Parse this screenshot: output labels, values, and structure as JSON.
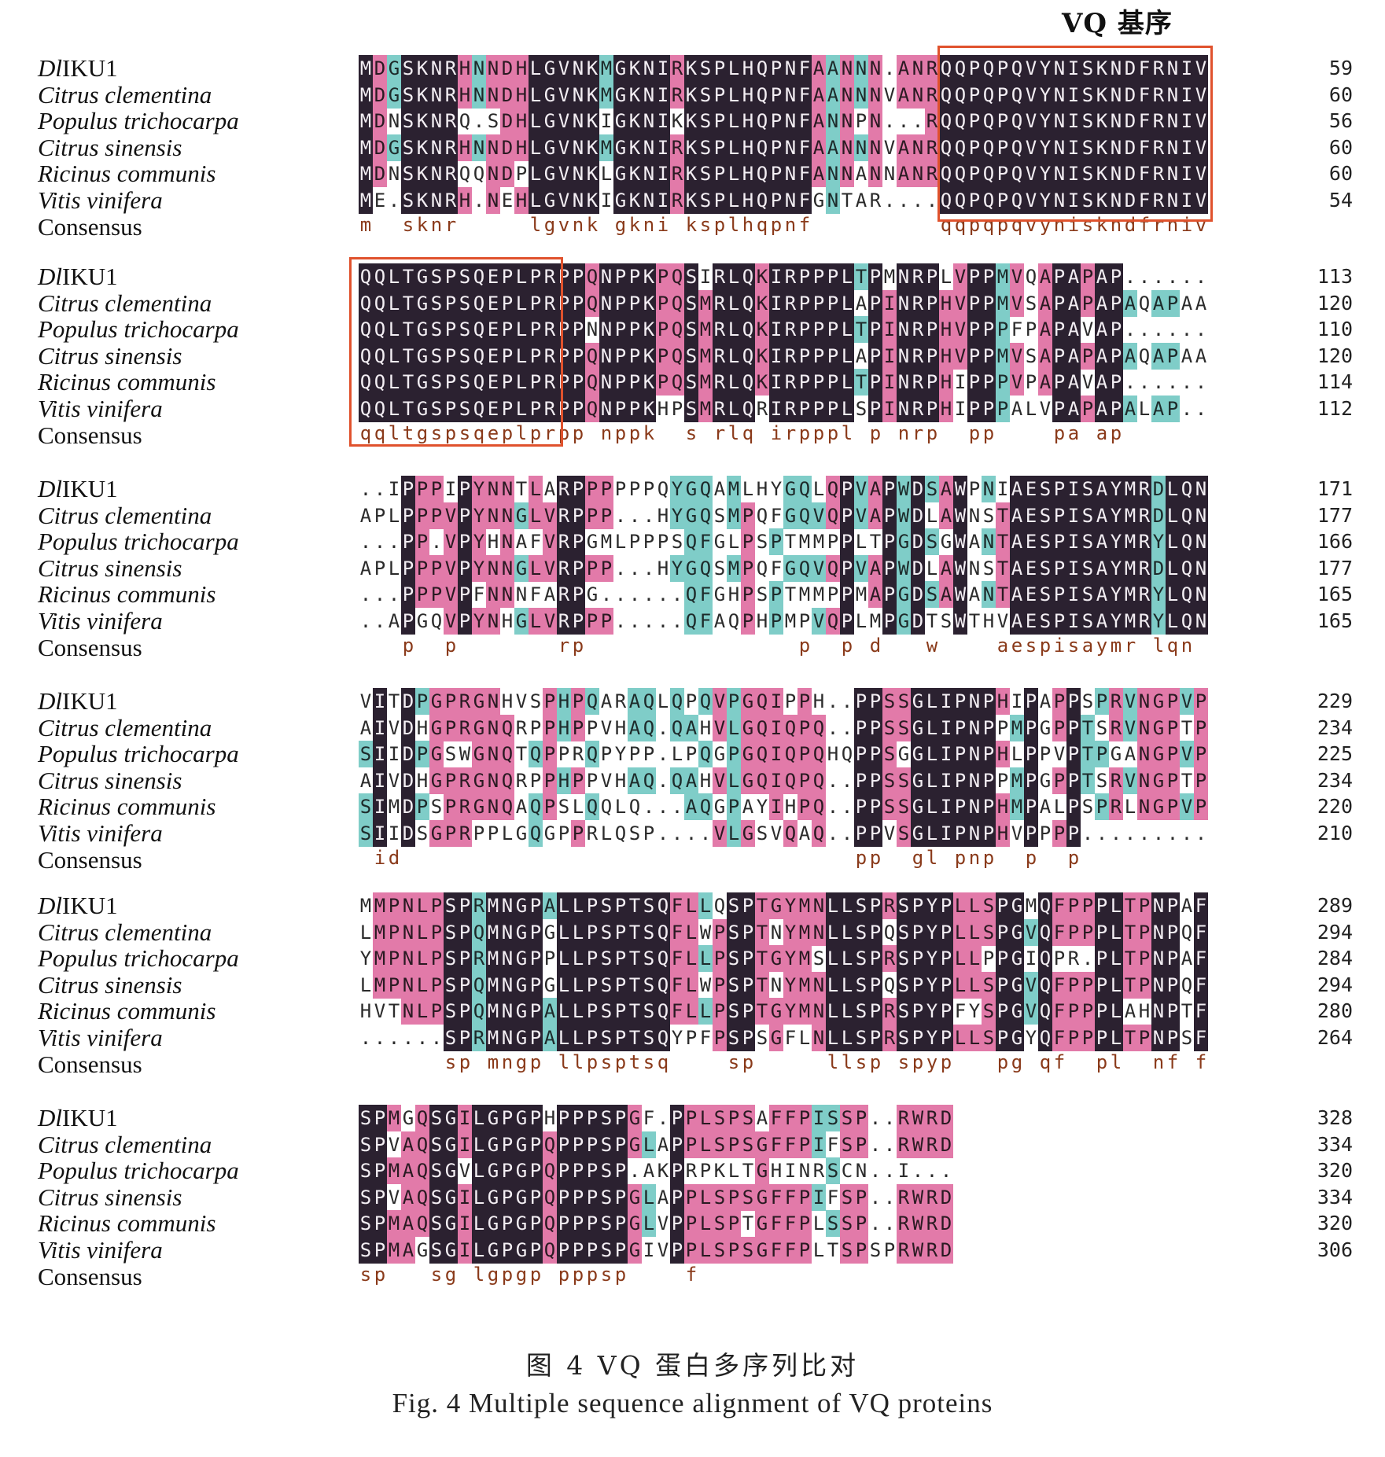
{
  "figure": {
    "motif_label": "VQ 基序",
    "caption_cn": "图 4    VQ 蛋白多序列比对",
    "caption_en": "Fig. 4   Multiple sequence alignment of VQ proteins"
  },
  "species": [
    {
      "name": "DlIKU1",
      "italic_prefix": "Dl",
      "suffix": "IKU1"
    },
    {
      "name": "Citrus clementina"
    },
    {
      "name": "Populus trichocarpa"
    },
    {
      "name": "Citrus sinensis"
    },
    {
      "name": "Ricinus communis"
    },
    {
      "name": "Vitis vinifera"
    }
  ],
  "consensus_label": "Consensus",
  "colors": {
    "full_conservation": "#2b2130",
    "high_conservation": "#e27aa9",
    "partial_conservation": "#7fcdc8",
    "motif_box": "#e0522d"
  },
  "blocks": [
    {
      "seqs": [
        "MDGSKNRHNNDHLGVNKMGKNIRKSPLHQPNFAANNN.ANRQQPQPQVYNISKNDFRNIV",
        "MDGSKNRHNNDHLGVNKMGKNIRKSPLHQPNFAANNNVANRQQPQPQVYNISKNDFRNIV",
        "MDNSKNRQ.SDHLGVNKIGKNIKKSPLHQPNFANNPN...RQQPQPQVYNISKNDFRNIV",
        "MDGSKNRHNNDHLGVNKMGKNIRKSPLHQPNFAANNNVANRQQPQPQVYNISKNDFRNIV",
        "MDNSKNRQQNDPLGVNKLGKNIRKSPLHQPNFANNANNANRQQPQPQVYNISKNDFRNIV",
        "ME.SKNRH.NEHLGVNKIGKNIRKSPLHQPNFGNTAR....QQPQPQVYNISKNDFRNIV"
      ],
      "consensus": "m  sknr     lgvnk gkni ksplhqpnf         qqpqpqvyniskndfrniv",
      "numbers": [
        "59",
        "60",
        "56",
        "60",
        "60",
        "54"
      ]
    },
    {
      "seqs": [
        "QQLTGSPSQEPLPRPPQNPPKPQSIRLQKIRPPPLTPMNRPLVPPMVQAPAPAP......",
        "QQLTGSPSQEPLPRPPQNPPKPQSMRLQKIRPPPLAPINRPHVPPMVSAPAPAPAQAPAA",
        "QQLTGSPSQEPLPRPPNNPPKPQSMRLQKIRPPPLTPINRPHVPPPFPAPAVAP......",
        "QQLTGSPSQEPLPRPPQNPPKPQSMRLQKIRPPPLAPINRPHVPPMVSAPAPAPAQAPAA",
        "QQLTGSPSQEPLPRPPQNPPKPQSMRLQKIRPPPLTPINRPHIPPPVPAPAVAP......",
        "QQLTGSPSQEPLPRPPQNPPKHPSMRLQRIRPPPLSPINRPHIPPPALVPAPAPALAP.."
      ],
      "consensus": "qqltgspsqeplprpp nppk  s rlq irpppl p nrp  pp    pa ap      ",
      "numbers": [
        "113",
        "120",
        "110",
        "120",
        "114",
        "112"
      ]
    },
    {
      "seqs": [
        "..IPPPIPYNNTLARPPPPPPQYGQAMLHYGQLQPVAPWDSAWPNIAESPISAYMRDLQN",
        "APLPPPVPYNNGLVRPPP...HYGQSMPQFGQVQPVAPWDLAWNSTAESPISAYMRDLQN",
        "...PP.VPYHNAFVRPGMLPPPSQFGLPSPTMMPPLTPGDSGWANTAESPISAYMRYLQN",
        "APLPPPVPYNNGLVRPPP...HYGQSMPQFGQVQPVAPWDLAWNSTAESPISAYMRDLQN",
        "...PPPVPFNNNFARPG......QFGHPSPTMMPPMAPGDSAWANTAESPISAYMRYLQN",
        "..APGQVPYNHGLVRPPP.....QFAQPHPMPVQPLMPGDTSWTHVAESPISAYMRYLQN"
      ],
      "consensus": "   p  p       rp               p  p d   w    aespisaymr lqn",
      "numbers": [
        "171",
        "177",
        "166",
        "177",
        "165",
        "165"
      ]
    },
    {
      "seqs": [
        "VITDPGPRGNHVSPHPQARAQLQPQVPGQIPPH..PPSSGLIPNPHIPAPPSPRVNGPVP",
        "AIVDHGPRGNQRPPHPPVHAQ.QAHVLGQIQPQ..PPSSGLIPNPPMPGPPTSRVNGPTP",
        "SIIDPGSWGNQTQPPRQPYPP.LPQGPGQIQPQHQPPSGGLIPNPHLPPVPTPGANGPVP",
        "AIVDHGPRGNQRPPHPPVHAQ.QAHVLGQIQPQ..PPSSGLIPNPPMPGPPTSRVNGPTP",
        "SIMDPSPRGNQAQPSLQQLQ...AQGPAYIHPQ..PPSSGLIPNPHMPALPSPRLNGPVP",
        "SIIDSGPRPPLGQGPPRLQSP....VLGSVQAQ..PPVSGLIPNPHVPPPP........."
      ],
      "consensus": " id                                pp  gl pnp  p  p         ",
      "numbers": [
        "229",
        "234",
        "225",
        "234",
        "220",
        "210"
      ]
    },
    {
      "seqs": [
        "MMPNLPSPRMNGPALLPSPTSQFLLQSPTGYMNLLSPRSPYPLLSPGMQFPPPLTPNPAF",
        "LMPNLPSPQMNGPGLLPSPTSQFLWPSPTNYMNLLSPQSPYPLLSPGVQFPPPLTPNPQF",
        "YMPNLPSPRMNGPPLLPSPTSQFLLPSPTGYMSLLSPRSPYPLLPPGIQPR.PLTPNPAF",
        "LMPNLPSPQMNGPGLLPSPTSQFLWPSPTNYMNLLSPQSPYPLLSPGVQFPPPLTPNPQF",
        "HVTNLPSPQMNGPALLPSPTSQFLLPSPTGYMNLLSPRSPYPFYSPGVQFPPPLAHNPTF",
        "......SPRMNGPALLPSPTSQYPFPSPSGFLNLLSPRSPYPLLSPGYQFPPPLTPNPSF"
      ],
      "consensus": "      sp mngp llpsptsq    sp     llsp spyp   pg qf  pl  nf f",
      "numbers": [
        "289",
        "294",
        "284",
        "294",
        "280",
        "264"
      ]
    },
    {
      "seqs": [
        "SPMGQSGILGPGPHPPPSPGF.PPLSPSAFFPISSP..RWRD",
        "SPVAQSGILGPGPQPPPSPGLAPPLSPSGFFPIFSP..RWRD",
        "SPMAQSGVLGPGPQPPPSP.AKPRPKLTGHINRSCN..I...",
        "SPVAQSGILGPGPQPPPSPGLAPPLSPSGFFPIFSP..RWRD",
        "SPMAQSGILGPGPQPPPSPGLVPPLSPTGFFPLSSP..RWRD",
        "SPMAGSGILGPGPQPPPSPGIVPPLSPSGFFPLTSPSPRWRD"
      ],
      "consensus": "sp   sg lgpgp pppsp    f                  ",
      "numbers": [
        "328",
        "334",
        "320",
        "334",
        "320",
        "306"
      ]
    }
  ]
}
